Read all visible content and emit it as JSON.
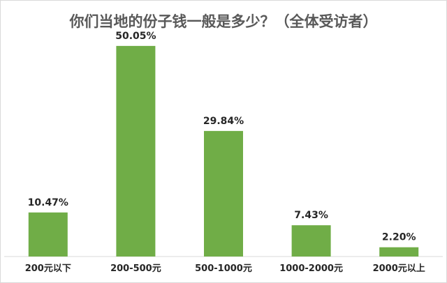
{
  "chart_data": {
    "type": "bar",
    "title": "你们当地的份子钱一般是多少？（全体受访者）",
    "categories": [
      "200元以下",
      "200-500元",
      "500-1000元",
      "1000-2000元",
      "2000元以上"
    ],
    "values": [
      10.47,
      50.05,
      29.84,
      7.43,
      2.2
    ],
    "value_labels": [
      "10.47%",
      "50.05%",
      "29.84%",
      "7.43%",
      "2.20%"
    ],
    "ylim": [
      0,
      55
    ],
    "grid": false,
    "legend": "none",
    "bar_color": "#70ad47",
    "xlabel": "",
    "ylabel": ""
  }
}
